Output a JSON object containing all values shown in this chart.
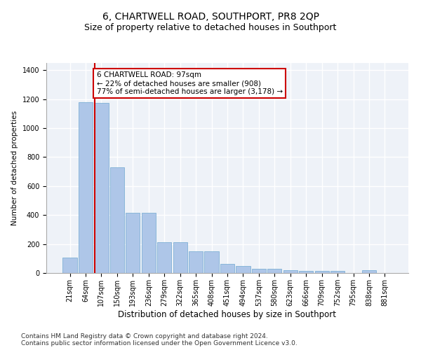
{
  "title": "6, CHARTWELL ROAD, SOUTHPORT, PR8 2QP",
  "subtitle": "Size of property relative to detached houses in Southport",
  "xlabel": "Distribution of detached houses by size in Southport",
  "ylabel": "Number of detached properties",
  "categories": [
    "21sqm",
    "64sqm",
    "107sqm",
    "150sqm",
    "193sqm",
    "236sqm",
    "279sqm",
    "322sqm",
    "365sqm",
    "408sqm",
    "451sqm",
    "494sqm",
    "537sqm",
    "580sqm",
    "623sqm",
    "666sqm",
    "709sqm",
    "752sqm",
    "795sqm",
    "838sqm",
    "881sqm"
  ],
  "values": [
    105,
    1180,
    1175,
    730,
    415,
    415,
    215,
    215,
    150,
    150,
    65,
    50,
    30,
    30,
    20,
    15,
    15,
    15,
    0,
    20,
    0
  ],
  "bar_color": "#aec6e8",
  "bar_edge_color": "#6fa8d0",
  "property_line_color": "#cc0000",
  "annotation_text": "6 CHARTWELL ROAD: 97sqm\n← 22% of detached houses are smaller (908)\n77% of semi-detached houses are larger (3,178) →",
  "annotation_box_color": "#ffffff",
  "annotation_box_edge_color": "#cc0000",
  "bg_color": "#eef2f8",
  "grid_color": "#ffffff",
  "ylim": [
    0,
    1450
  ],
  "footer": "Contains HM Land Registry data © Crown copyright and database right 2024.\nContains public sector information licensed under the Open Government Licence v3.0.",
  "title_fontsize": 10,
  "subtitle_fontsize": 9,
  "xlabel_fontsize": 8.5,
  "ylabel_fontsize": 7.5,
  "tick_fontsize": 7,
  "footer_fontsize": 6.5,
  "ann_fontsize": 7.5
}
